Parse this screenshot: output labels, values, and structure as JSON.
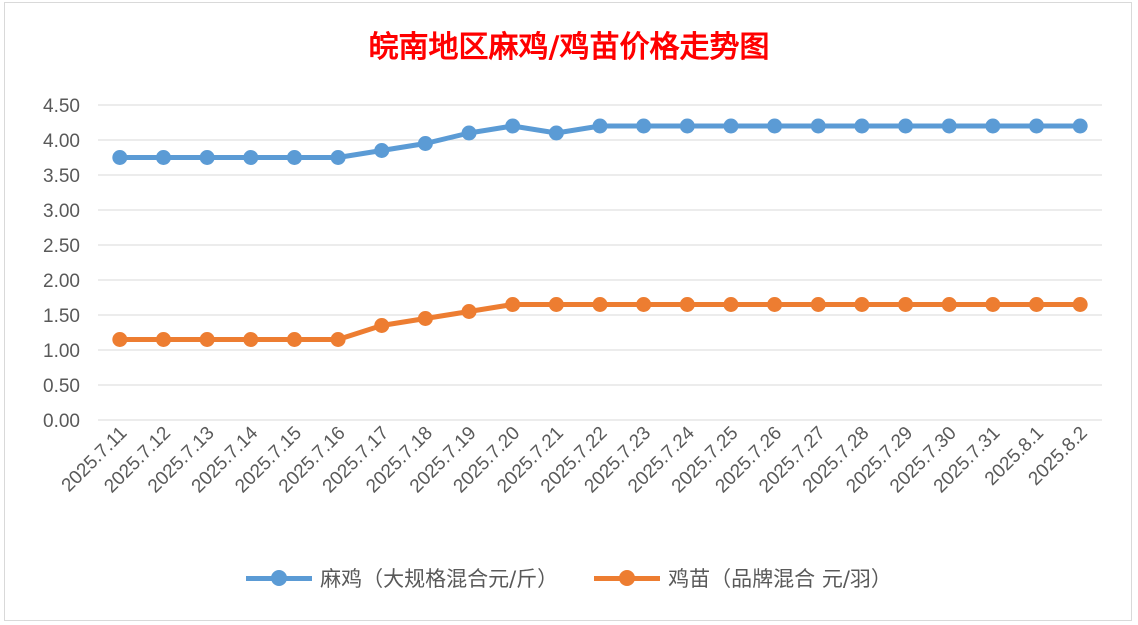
{
  "chart_data": {
    "type": "line",
    "title": "皖南地区麻鸡/鸡苗价格走势图",
    "categories": [
      "2025.7.11",
      "2025.7.12",
      "2025.7.13",
      "2025.7.14",
      "2025.7.15",
      "2025.7.16",
      "2025.7.17",
      "2025.7.18",
      "2025.7.19",
      "2025.7.20",
      "2025.7.21",
      "2025.7.22",
      "2025.7.23",
      "2025.7.24",
      "2025.7.25",
      "2025.7.26",
      "2025.7.27",
      "2025.7.28",
      "2025.7.29",
      "2025.7.30",
      "2025.7.31",
      "2025.8.1",
      "2025.8.2"
    ],
    "series": [
      {
        "name": "麻鸡（大规格混合元/斤）",
        "color": "#5b9bd5",
        "values": [
          3.75,
          3.75,
          3.75,
          3.75,
          3.75,
          3.75,
          3.85,
          3.95,
          4.1,
          4.2,
          4.1,
          4.2,
          4.2,
          4.2,
          4.2,
          4.2,
          4.2,
          4.2,
          4.2,
          4.2,
          4.2,
          4.2,
          4.2
        ]
      },
      {
        "name": "鸡苗（品牌混合 元/羽）",
        "color": "#ed7d31",
        "values": [
          1.15,
          1.15,
          1.15,
          1.15,
          1.15,
          1.15,
          1.35,
          1.45,
          1.55,
          1.65,
          1.65,
          1.65,
          1.65,
          1.65,
          1.65,
          1.65,
          1.65,
          1.65,
          1.65,
          1.65,
          1.65,
          1.65,
          1.65
        ]
      }
    ],
    "ylim": [
      0,
      4.5
    ],
    "yticks": [
      "0.00",
      "0.50",
      "1.00",
      "1.50",
      "2.00",
      "2.50",
      "3.00",
      "3.50",
      "4.00",
      "4.50"
    ],
    "grid": true,
    "legend_position": "bottom",
    "title_color": "#ff0000",
    "grid_color": "#d9d9d9",
    "tick_color": "#595959"
  }
}
